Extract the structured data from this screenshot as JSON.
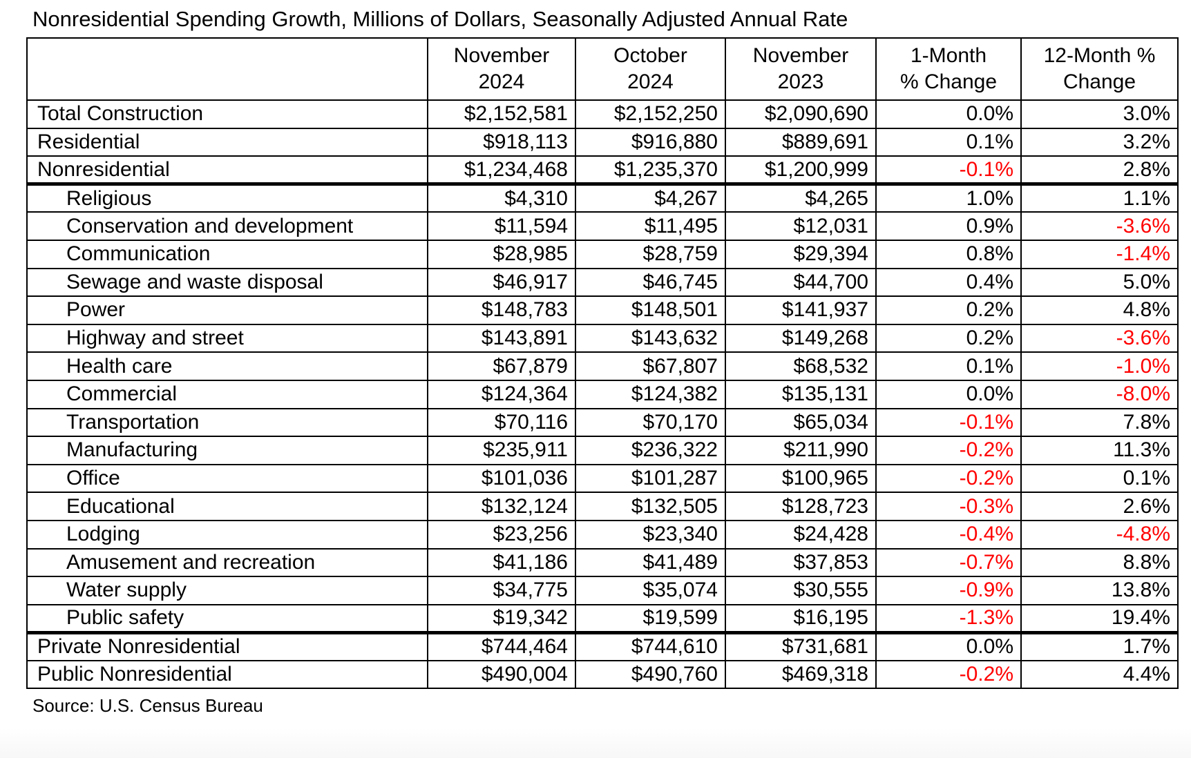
{
  "chart_data": {
    "type": "table",
    "title": "Nonresidential Spending Growth, Millions of Dollars, Seasonally Adjusted Annual Rate",
    "source": "Source: U.S. Census Bureau",
    "negative_color": "#ff0000",
    "columns": [
      {
        "lines": []
      },
      {
        "lines": [
          "November",
          "2024"
        ]
      },
      {
        "lines": [
          "October",
          "2024"
        ]
      },
      {
        "lines": [
          "November",
          "2023"
        ]
      },
      {
        "lines": [
          "1-Month",
          "% Change"
        ]
      },
      {
        "lines": [
          "12-Month %",
          "Change"
        ]
      }
    ],
    "rows": [
      {
        "label": "Total Construction",
        "indent": false,
        "thick_bottom": false,
        "values": [
          "$2,152,581",
          "$2,152,250",
          "$2,090,690",
          "0.0%",
          "3.0%"
        ]
      },
      {
        "label": "Residential",
        "indent": false,
        "thick_bottom": false,
        "values": [
          "$918,113",
          "$916,880",
          "$889,691",
          "0.1%",
          "3.2%"
        ]
      },
      {
        "label": "Nonresidential",
        "indent": false,
        "thick_bottom": true,
        "values": [
          "$1,234,468",
          "$1,235,370",
          "$1,200,999",
          "-0.1%",
          "2.8%"
        ]
      },
      {
        "label": "Religious",
        "indent": true,
        "thick_bottom": false,
        "values": [
          "$4,310",
          "$4,267",
          "$4,265",
          "1.0%",
          "1.1%"
        ]
      },
      {
        "label": "Conservation and development",
        "indent": true,
        "thick_bottom": false,
        "values": [
          "$11,594",
          "$11,495",
          "$12,031",
          "0.9%",
          "-3.6%"
        ]
      },
      {
        "label": "Communication",
        "indent": true,
        "thick_bottom": false,
        "values": [
          "$28,985",
          "$28,759",
          "$29,394",
          "0.8%",
          "-1.4%"
        ]
      },
      {
        "label": "Sewage and waste disposal",
        "indent": true,
        "thick_bottom": false,
        "values": [
          "$46,917",
          "$46,745",
          "$44,700",
          "0.4%",
          "5.0%"
        ]
      },
      {
        "label": "Power",
        "indent": true,
        "thick_bottom": false,
        "values": [
          "$148,783",
          "$148,501",
          "$141,937",
          "0.2%",
          "4.8%"
        ]
      },
      {
        "label": "Highway and street",
        "indent": true,
        "thick_bottom": false,
        "values": [
          "$143,891",
          "$143,632",
          "$149,268",
          "0.2%",
          "-3.6%"
        ]
      },
      {
        "label": "Health care",
        "indent": true,
        "thick_bottom": false,
        "values": [
          "$67,879",
          "$67,807",
          "$68,532",
          "0.1%",
          "-1.0%"
        ]
      },
      {
        "label": "Commercial",
        "indent": true,
        "thick_bottom": false,
        "values": [
          "$124,364",
          "$124,382",
          "$135,131",
          "0.0%",
          "-8.0%"
        ]
      },
      {
        "label": "Transportation",
        "indent": true,
        "thick_bottom": false,
        "values": [
          "$70,116",
          "$70,170",
          "$65,034",
          "-0.1%",
          "7.8%"
        ]
      },
      {
        "label": "Manufacturing",
        "indent": true,
        "thick_bottom": false,
        "values": [
          "$235,911",
          "$236,322",
          "$211,990",
          "-0.2%",
          "11.3%"
        ]
      },
      {
        "label": "Office",
        "indent": true,
        "thick_bottom": false,
        "values": [
          "$101,036",
          "$101,287",
          "$100,965",
          "-0.2%",
          "0.1%"
        ]
      },
      {
        "label": "Educational",
        "indent": true,
        "thick_bottom": false,
        "values": [
          "$132,124",
          "$132,505",
          "$128,723",
          "-0.3%",
          "2.6%"
        ]
      },
      {
        "label": "Lodging",
        "indent": true,
        "thick_bottom": false,
        "values": [
          "$23,256",
          "$23,340",
          "$24,428",
          "-0.4%",
          "-4.8%"
        ]
      },
      {
        "label": "Amusement and recreation",
        "indent": true,
        "thick_bottom": false,
        "values": [
          "$41,186",
          "$41,489",
          "$37,853",
          "-0.7%",
          "8.8%"
        ]
      },
      {
        "label": "Water supply",
        "indent": true,
        "thick_bottom": false,
        "values": [
          "$34,775",
          "$35,074",
          "$30,555",
          "-0.9%",
          "13.8%"
        ]
      },
      {
        "label": "Public safety",
        "indent": true,
        "thick_bottom": true,
        "values": [
          "$19,342",
          "$19,599",
          "$16,195",
          "-1.3%",
          "19.4%"
        ]
      },
      {
        "label": "Private Nonresidential",
        "indent": false,
        "thick_bottom": false,
        "values": [
          "$744,464",
          "$744,610",
          "$731,681",
          "0.0%",
          "1.7%"
        ]
      },
      {
        "label": "Public Nonresidential",
        "indent": false,
        "thick_bottom": false,
        "values": [
          "$490,004",
          "$490,760",
          "$469,318",
          "-0.2%",
          "4.4%"
        ]
      }
    ]
  }
}
